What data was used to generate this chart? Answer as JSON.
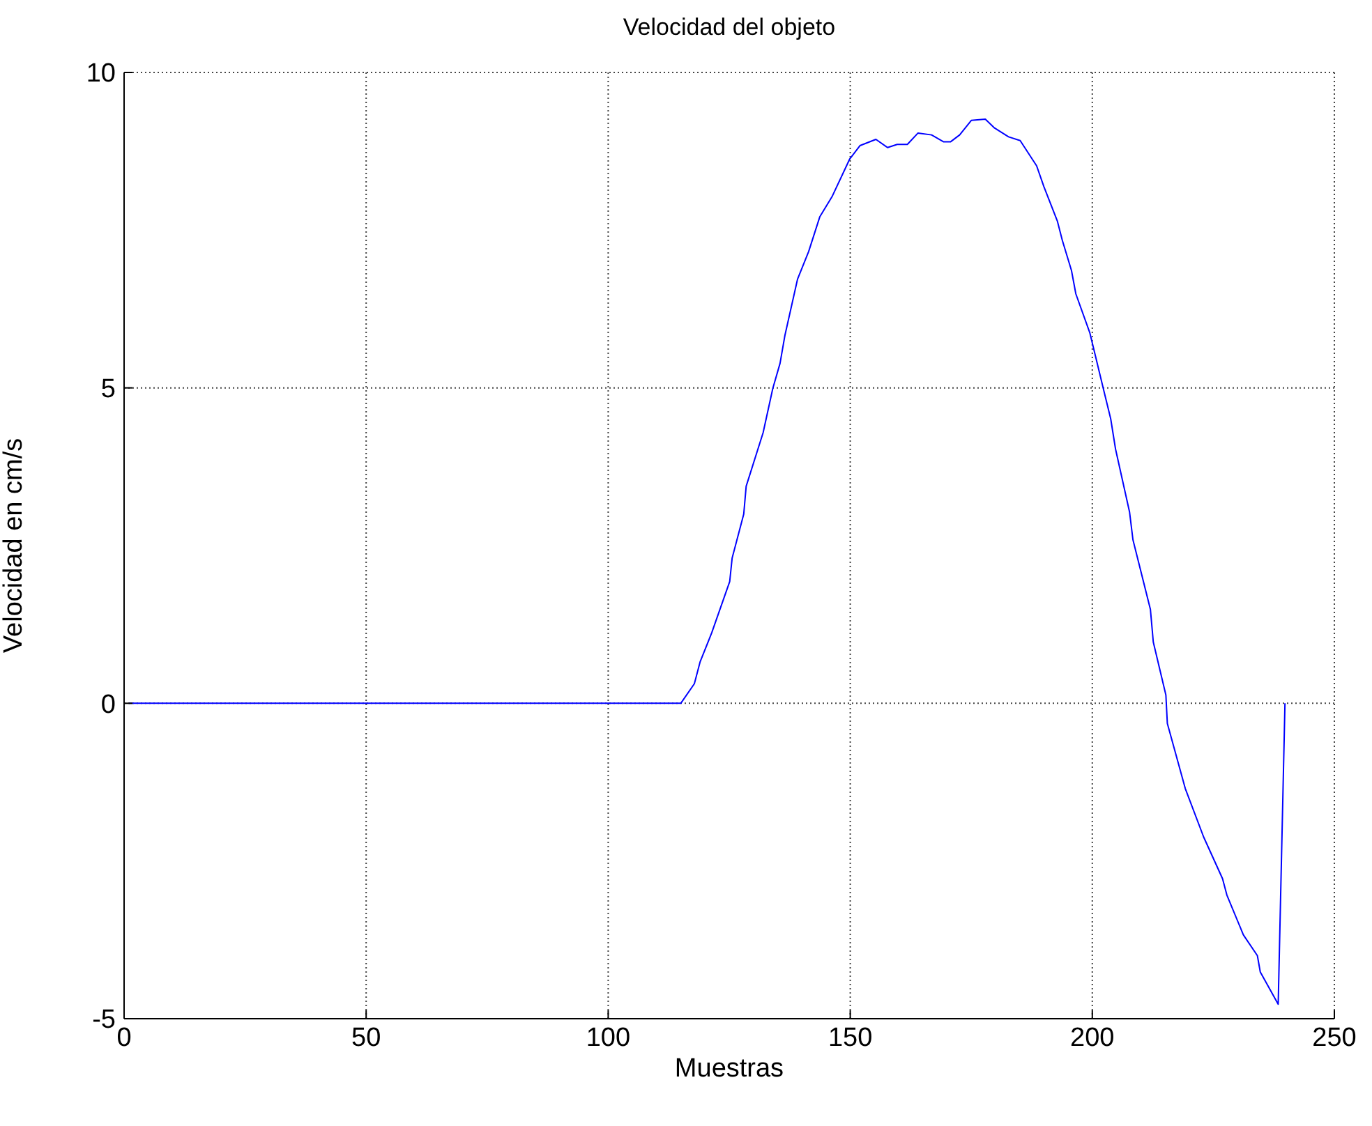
{
  "chart_data": {
    "type": "line",
    "title": "Velocidad del objeto",
    "xlabel": "Muestras",
    "ylabel": "Velocidad en cm/s",
    "x": [
      1,
      115,
      117.8,
      119,
      121.4,
      125.1,
      125.6,
      128,
      128.5,
      132,
      134,
      135.5,
      136.5,
      139.1,
      141.4,
      143.7,
      146.3,
      149.9,
      152,
      155.3,
      157.7,
      159.7,
      161.8,
      164,
      166.8,
      169.3,
      170.7,
      172.6,
      175,
      177.9,
      179.8,
      182.7,
      185.1,
      188.5,
      190,
      192.8,
      193.8,
      195.7,
      196.6,
      199.5,
      202.4,
      203.8,
      204.8,
      207.7,
      208.4,
      212,
      212.6,
      215.2,
      215.5,
      219.2,
      223,
      226.9,
      227.8,
      231.2,
      234.1,
      234.7,
      238.4,
      239.8
    ],
    "series": [
      {
        "color": "#0000ff",
        "values": [
          0,
          0,
          0.31,
          0.66,
          1.12,
          1.93,
          2.3,
          3.0,
          3.44,
          4.29,
          4.99,
          5.39,
          5.83,
          6.72,
          7.16,
          7.71,
          8.04,
          8.63,
          8.84,
          8.94,
          8.81,
          8.86,
          8.86,
          9.04,
          9.01,
          8.9,
          8.9,
          9.01,
          9.24,
          9.26,
          9.12,
          8.98,
          8.92,
          8.52,
          8.19,
          7.64,
          7.34,
          6.86,
          6.49,
          5.87,
          4.95,
          4.51,
          4.03,
          3.03,
          2.59,
          1.49,
          0.97,
          0.13,
          -0.32,
          -1.35,
          -2.12,
          -2.78,
          -3.04,
          -3.67,
          -4.0,
          -4.26,
          -4.77,
          0
        ]
      }
    ],
    "xlim": [
      0,
      250
    ],
    "xticks": [
      0,
      50,
      100,
      150,
      200,
      250
    ],
    "ylim": [
      -5,
      10
    ],
    "yticks": [
      -5,
      0,
      5,
      10
    ],
    "grid": true,
    "marker": "none",
    "line_style": "solid",
    "legend": false
  }
}
